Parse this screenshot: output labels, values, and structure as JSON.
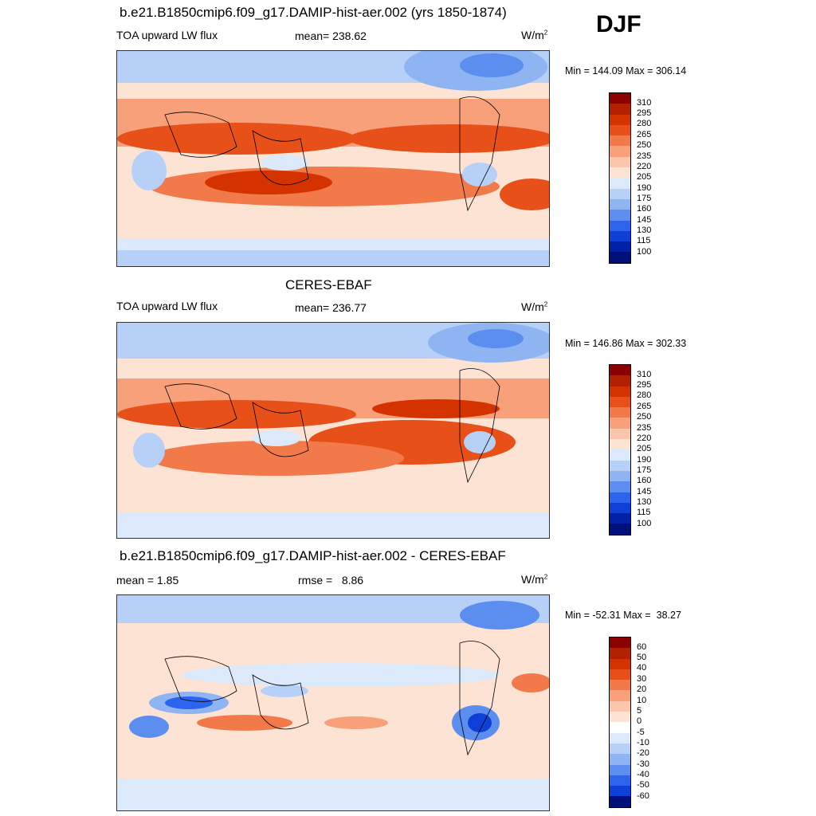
{
  "season": "DJF",
  "panels": [
    {
      "title": "b.e21.B1850cmip6.f09_g17.DAMIP-hist-aer.002 (yrs 1850-1874)",
      "left_label": "TOA upward LW flux",
      "center_label": "mean= 238.62",
      "units": "W/m",
      "units_sup": "2",
      "minmax": "Min = 144.09 Max = 306.14",
      "colorbar_labels": [
        "310",
        "295",
        "280",
        "265",
        "250",
        "235",
        "220",
        "205",
        "190",
        "175",
        "160",
        "145",
        "130",
        "115",
        "100"
      ]
    },
    {
      "title": "CERES-EBAF",
      "left_label": "TOA upward LW flux",
      "center_label": "mean= 236.77",
      "units": "W/m",
      "units_sup": "2",
      "minmax": "Min = 146.86 Max = 302.33",
      "colorbar_labels": [
        "310",
        "295",
        "280",
        "265",
        "250",
        "235",
        "220",
        "205",
        "190",
        "175",
        "160",
        "145",
        "130",
        "115",
        "100"
      ]
    },
    {
      "title": "b.e21.B1850cmip6.f09_g17.DAMIP-hist-aer.002 - CERES-EBAF",
      "left_label": "mean =   1.85",
      "center_label": "rmse =   8.86",
      "units": "W/m",
      "units_sup": "2",
      "minmax": "Min = -52.31 Max =  38.27",
      "colorbar_labels": [
        "60",
        "50",
        "40",
        "30",
        "20",
        "10",
        "5",
        "0",
        "-5",
        "-10",
        "-20",
        "-30",
        "-40",
        "-50",
        "-60"
      ]
    }
  ],
  "colors": {
    "abs_scale": [
      "#8b0000",
      "#b22000",
      "#d43300",
      "#e8501a",
      "#f27a4a",
      "#f7a07a",
      "#fbc6ac",
      "#fde3d4",
      "#dbe9fb",
      "#b7d0f7",
      "#8fb4f2",
      "#5c8ef0",
      "#2d64ee",
      "#0e3fd6",
      "#0020a8",
      "#00107a"
    ],
    "diff_scale": [
      "#8b0000",
      "#b22000",
      "#d43300",
      "#e8501a",
      "#f27a4a",
      "#f7a07a",
      "#fbc6ac",
      "#fde3d4",
      "#ffffff",
      "#dbe9fb",
      "#b7d0f7",
      "#8fb4f2",
      "#5c8ef0",
      "#2d64ee",
      "#0e3fd6",
      "#00107a"
    ]
  },
  "chart_data": [
    {
      "type": "heatmap",
      "title": "b.e21.B1850cmip6.f09_g17.DAMIP-hist-aer.002 (yrs 1850-1874)",
      "variable": "TOA upward LW flux",
      "units": "W/m2",
      "season": "DJF",
      "mean": 238.62,
      "min": 144.09,
      "max": 306.14,
      "contour_levels": [
        100,
        115,
        130,
        145,
        160,
        175,
        190,
        205,
        220,
        235,
        250,
        265,
        280,
        295,
        310
      ]
    },
    {
      "type": "heatmap",
      "title": "CERES-EBAF",
      "variable": "TOA upward LW flux",
      "units": "W/m2",
      "season": "DJF",
      "mean": 236.77,
      "min": 146.86,
      "max": 302.33,
      "contour_levels": [
        100,
        115,
        130,
        145,
        160,
        175,
        190,
        205,
        220,
        235,
        250,
        265,
        280,
        295,
        310
      ]
    },
    {
      "type": "heatmap",
      "title": "b.e21.B1850cmip6.f09_g17.DAMIP-hist-aer.002 - CERES-EBAF",
      "units": "W/m2",
      "season": "DJF",
      "mean": 1.85,
      "rmse": 8.86,
      "min": -52.31,
      "max": 38.27,
      "contour_levels": [
        -60,
        -50,
        -40,
        -30,
        -20,
        -10,
        -5,
        0,
        5,
        10,
        20,
        30,
        40,
        50,
        60
      ]
    }
  ]
}
